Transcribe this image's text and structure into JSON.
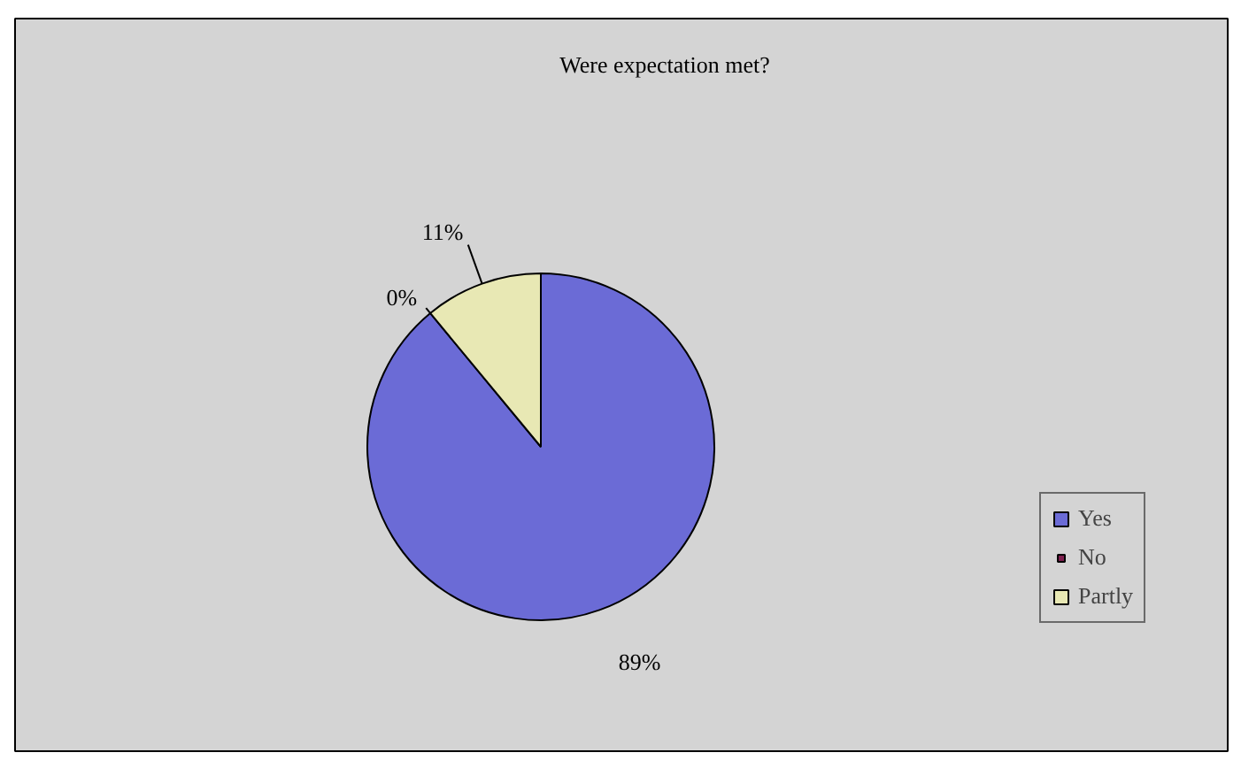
{
  "chart_data": {
    "type": "pie",
    "title": "Were expectation met?",
    "categories": [
      "Yes",
      "No",
      "Partly"
    ],
    "values": [
      89,
      0,
      11
    ],
    "colors": [
      "#6b6bd6",
      "#7f1f4f",
      "#e8e8b4"
    ],
    "value_labels": [
      "89%",
      "0%",
      "11%"
    ],
    "legend": "right"
  }
}
